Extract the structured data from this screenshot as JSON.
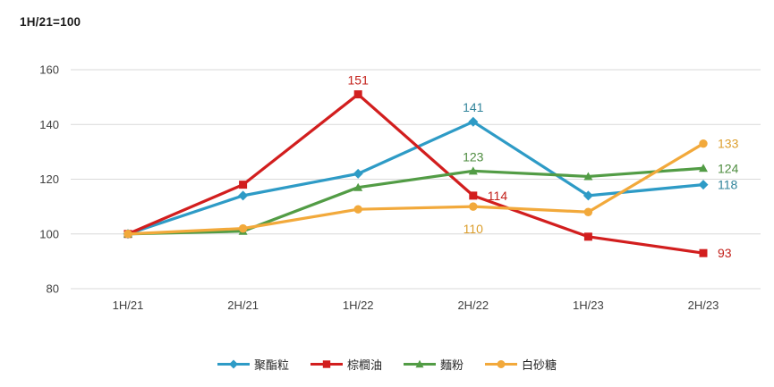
{
  "title": "1H/21=100",
  "chart_data": {
    "type": "line",
    "title": "1H/21=100",
    "x_categories": [
      "1H/21",
      "2H/21",
      "1H/22",
      "2H/22",
      "1H/23",
      "2H/23"
    ],
    "yticks": [
      80,
      100,
      120,
      140,
      160
    ],
    "ylim": [
      80,
      160
    ],
    "grid": "horizontal",
    "gridline_color": "#D9D9D9",
    "tick_color": "#404040",
    "legend_position": "bottom",
    "series": [
      {
        "name": "聚酯粒",
        "marker": "diamond",
        "color": "#2E9BC6",
        "label_color": "#31849B",
        "values": [
          100,
          114,
          122,
          141,
          114,
          118
        ],
        "data_labels": [
          {
            "index": 3,
            "text": "141",
            "position": "above"
          },
          {
            "index": 5,
            "text": "118",
            "position": "right"
          }
        ]
      },
      {
        "name": "棕櫚油",
        "marker": "square",
        "color": "#D21E1E",
        "label_color": "#C3211B",
        "values": [
          100,
          118,
          151,
          114,
          99,
          93
        ],
        "data_labels": [
          {
            "index": 2,
            "text": "151",
            "position": "above"
          },
          {
            "index": 3,
            "text": "114",
            "position": "right"
          },
          {
            "index": 5,
            "text": "93",
            "position": "right"
          }
        ]
      },
      {
        "name": "麵粉",
        "marker": "triangle",
        "color": "#529C45",
        "label_color": "#4E8C3F",
        "values": [
          100,
          101,
          117,
          123,
          121,
          124
        ],
        "data_labels": [
          {
            "index": 3,
            "text": "123",
            "position": "above"
          },
          {
            "index": 5,
            "text": "124",
            "position": "right"
          }
        ]
      },
      {
        "name": "白砂糖",
        "marker": "circle",
        "color": "#F2A93B",
        "label_color": "#DC9E2C",
        "values": [
          100,
          102,
          109,
          110,
          108,
          133
        ],
        "data_labels": [
          {
            "index": 3,
            "text": "110",
            "position": "below"
          },
          {
            "index": 5,
            "text": "133",
            "position": "right"
          }
        ]
      }
    ]
  }
}
